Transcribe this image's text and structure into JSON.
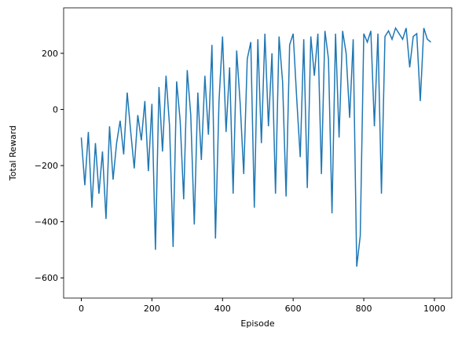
{
  "chart_data": {
    "type": "line",
    "xlabel": "Episode",
    "ylabel": "Total Reward",
    "x": [
      0,
      10,
      20,
      30,
      40,
      50,
      60,
      70,
      80,
      90,
      100,
      110,
      120,
      130,
      140,
      150,
      160,
      170,
      180,
      190,
      200,
      210,
      220,
      230,
      240,
      250,
      260,
      270,
      280,
      290,
      300,
      310,
      320,
      330,
      340,
      350,
      360,
      370,
      380,
      390,
      400,
      410,
      420,
      430,
      440,
      450,
      460,
      470,
      480,
      490,
      500,
      510,
      520,
      530,
      540,
      550,
      560,
      570,
      580,
      590,
      600,
      610,
      620,
      630,
      640,
      650,
      660,
      670,
      680,
      690,
      700,
      710,
      720,
      730,
      740,
      750,
      760,
      770,
      780,
      790,
      800,
      810,
      820,
      830,
      840,
      850,
      860,
      870,
      880,
      890,
      900,
      910,
      920,
      930,
      940,
      950,
      960,
      970,
      980,
      990
    ],
    "series": [
      {
        "name": "Total Reward",
        "color": "#1f77b4",
        "values": [
          -100,
          -270,
          -80,
          -350,
          -120,
          -300,
          -150,
          -390,
          -60,
          -250,
          -120,
          -40,
          -160,
          60,
          -80,
          -210,
          -20,
          -110,
          30,
          -220,
          20,
          -500,
          80,
          -150,
          120,
          -60,
          -490,
          100,
          -40,
          -320,
          140,
          -20,
          -410,
          60,
          -180,
          120,
          -90,
          230,
          -460,
          30,
          260,
          -80,
          150,
          -300,
          210,
          20,
          -230,
          180,
          240,
          -350,
          250,
          -120,
          270,
          -60,
          200,
          -300,
          260,
          100,
          -310,
          230,
          270,
          40,
          -170,
          250,
          -280,
          260,
          120,
          270,
          -230,
          280,
          180,
          -370,
          270,
          -100,
          280,
          200,
          -30,
          250,
          -560,
          -450,
          270,
          240,
          280,
          -60,
          270,
          -300,
          260,
          280,
          250,
          290,
          270,
          250,
          290,
          150,
          260,
          270,
          30,
          290,
          250,
          240
        ]
      }
    ],
    "xlim": [
      -50,
      1049
    ],
    "ylim": [
      -672,
      362
    ],
    "xticks": [
      0,
      200,
      400,
      600,
      800,
      1000
    ],
    "yticks": [
      {
        "value": -600,
        "label": "−600"
      },
      {
        "value": -400,
        "label": "−400"
      },
      {
        "value": -200,
        "label": "−200"
      },
      0,
      200
    ]
  }
}
